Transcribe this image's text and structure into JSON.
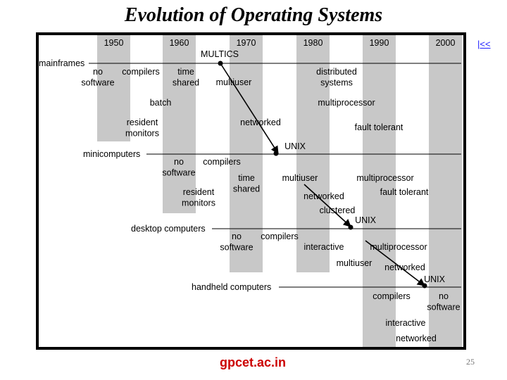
{
  "title": "Evolution of Operating Systems",
  "nav_link": "|<<",
  "footer_site": "gpcet.ac.in",
  "page_number": "25",
  "colors": {
    "band": "#c8c8c8",
    "line": "#000000",
    "footer": "#cc0000",
    "link": "#1a1aff"
  },
  "diagram": {
    "decades": [
      "1950",
      "1960",
      "1970",
      "1980",
      "1990",
      "2000"
    ],
    "categories": [
      "mainframes",
      "minicomputers",
      "desktop computers",
      "handheld computers"
    ],
    "labels": {
      "multics": "MULTICS",
      "mf_no_software": [
        "no",
        "software"
      ],
      "mf_compilers": "compilers",
      "mf_time_shared": [
        "time",
        "shared"
      ],
      "mf_multiuser": "multiuser",
      "mf_distributed": [
        "distributed",
        "systems"
      ],
      "mf_batch": "batch",
      "mf_multiprocessor": "multiprocessor",
      "mf_resident": [
        "resident",
        "monitors"
      ],
      "mf_networked": "networked",
      "mf_fault": "fault tolerant",
      "unix1": "UNIX",
      "mc_no_software": [
        "no",
        "software"
      ],
      "mc_compilers": "compilers",
      "mc_time_shared": [
        "time",
        "shared"
      ],
      "mc_multiuser": "multiuser",
      "mc_multiprocessor": "multiprocessor",
      "mc_resident": [
        "resident",
        "monitors"
      ],
      "mc_networked": "networked",
      "mc_fault": "fault tolerant",
      "mc_clustered": "clustered",
      "unix2": "UNIX",
      "dc_no_software": [
        "no",
        "software"
      ],
      "dc_compilers": "compilers",
      "dc_interactive": "interactive",
      "dc_multiprocessor": "multiprocessor",
      "dc_multiuser": "multiuser",
      "dc_networked": "networked",
      "unix3": "UNIX",
      "hh_compilers": "compilers",
      "hh_no_software": [
        "no",
        "software"
      ],
      "hh_interactive": "interactive",
      "hh_networked": "networked"
    }
  }
}
